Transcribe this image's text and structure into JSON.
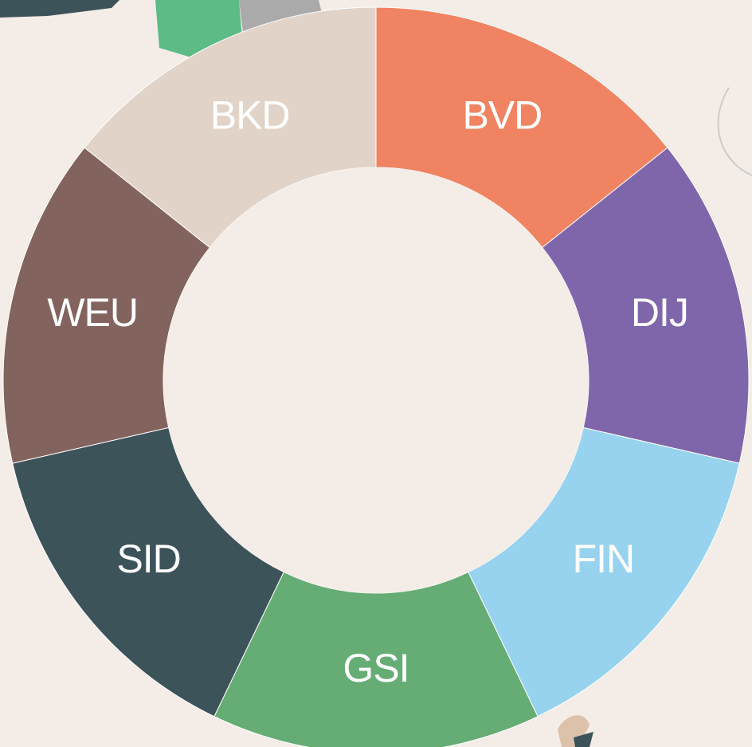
{
  "menu": {
    "items": [
      {
        "label": "BVD",
        "color": "#f08462"
      },
      {
        "label": "DIJ",
        "color": "#7f66aa"
      },
      {
        "label": "FIN",
        "color": "#97d3ee"
      },
      {
        "label": "GSI",
        "color": "#66ac75"
      },
      {
        "label": "SID",
        "color": "#3d535a"
      },
      {
        "label": "WEU",
        "color": "#83635d"
      },
      {
        "label": "BKD",
        "color": "#e1d3c7"
      }
    ]
  }
}
